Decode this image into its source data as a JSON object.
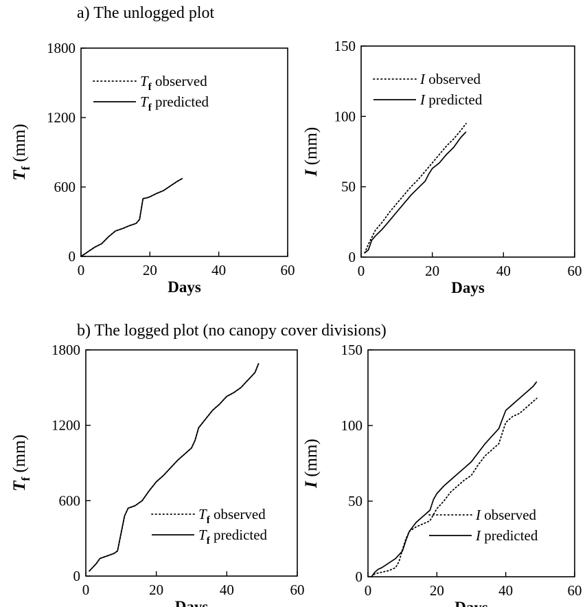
{
  "sections": {
    "a_title": "a) The unlogged plot",
    "b_title": "b) The logged plot (no canopy cover divisions)"
  },
  "chart_data": [
    {
      "id": "a-left",
      "type": "line",
      "xlabel": "Days",
      "ylabel_main": "T",
      "ylabel_sub": "f",
      "ylabel_unit": " (mm)",
      "xlim": [
        0,
        60
      ],
      "ylim": [
        0,
        1800
      ],
      "xticks": [
        0,
        20,
        40,
        60
      ],
      "yticks": [
        0,
        600,
        1200,
        1800
      ],
      "grid": false,
      "legend_position": "top-left",
      "series": [
        {
          "name_main": "T",
          "name_sub": "f",
          "name_rest": " observed",
          "style": "dotted",
          "x": [
            0,
            2,
            4,
            6,
            8,
            10,
            12,
            14,
            16,
            17,
            18,
            19,
            20,
            22,
            24,
            26,
            28,
            29.5
          ],
          "y": [
            0,
            40,
            80,
            110,
            170,
            220,
            240,
            265,
            285,
            320,
            500,
            505,
            515,
            545,
            570,
            610,
            650,
            675
          ]
        },
        {
          "name_main": "T",
          "name_sub": "f",
          "name_rest": " predicted",
          "style": "solid",
          "x": [
            0,
            2,
            4,
            6,
            8,
            10,
            12,
            14,
            16,
            17,
            18,
            19,
            20,
            22,
            24,
            26,
            28,
            29.5
          ],
          "y": [
            0,
            40,
            80,
            110,
            170,
            220,
            240,
            265,
            285,
            320,
            500,
            505,
            515,
            545,
            570,
            610,
            650,
            675
          ]
        }
      ]
    },
    {
      "id": "a-right",
      "type": "line",
      "xlabel": "Days",
      "ylabel_main": "I",
      "ylabel_sub": "",
      "ylabel_unit": " (mm)",
      "xlim": [
        0,
        60
      ],
      "ylim": [
        0,
        150
      ],
      "xticks": [
        0,
        20,
        40,
        60
      ],
      "yticks": [
        0,
        50,
        100,
        150
      ],
      "grid": false,
      "legend_position": "top-left",
      "series": [
        {
          "name_main": "I",
          "name_sub": "",
          "name_rest": " observed",
          "style": "dotted",
          "x": [
            1,
            2,
            4,
            6,
            8,
            10,
            12,
            14,
            16,
            18,
            20,
            22,
            24,
            26,
            28,
            29.5
          ],
          "y": [
            3,
            9,
            19,
            25,
            32,
            38,
            44,
            50,
            55,
            61,
            67,
            73,
            79,
            84,
            90,
            95
          ]
        },
        {
          "name_main": "I",
          "name_sub": "",
          "name_rest": " predicted",
          "style": "solid",
          "x": [
            1,
            2,
            3,
            4,
            6,
            8,
            10,
            12,
            14,
            16,
            18,
            19,
            20,
            22,
            24,
            26,
            28,
            29.5
          ],
          "y": [
            3,
            5,
            12,
            15,
            20,
            26,
            32,
            38,
            44,
            49,
            54,
            59,
            63,
            67,
            73,
            78,
            85,
            89
          ]
        }
      ]
    },
    {
      "id": "b-left",
      "type": "line",
      "xlabel": "Days",
      "ylabel_main": "T",
      "ylabel_sub": "f",
      "ylabel_unit": " (mm)",
      "xlim": [
        0,
        60
      ],
      "ylim": [
        0,
        1800
      ],
      "xticks": [
        0,
        20,
        40,
        60
      ],
      "yticks": [
        0,
        600,
        1200,
        1800
      ],
      "grid": false,
      "legend_position": "bottom-right",
      "series": [
        {
          "name_main": "T",
          "name_sub": "f",
          "name_rest": " observed",
          "style": "dotted",
          "x": [
            1,
            2,
            3,
            4,
            6,
            8,
            9,
            10,
            11,
            12,
            14,
            16,
            18,
            20,
            22,
            24,
            26,
            28,
            30,
            31,
            32,
            34,
            36,
            38,
            40,
            42,
            44,
            46,
            48,
            49
          ],
          "y": [
            40,
            70,
            100,
            140,
            160,
            180,
            200,
            340,
            480,
            540,
            560,
            600,
            680,
            750,
            800,
            860,
            920,
            970,
            1020,
            1080,
            1180,
            1250,
            1320,
            1370,
            1430,
            1460,
            1500,
            1560,
            1620,
            1690
          ]
        },
        {
          "name_main": "T",
          "name_sub": "f",
          "name_rest": " predicted",
          "style": "solid",
          "x": [
            1,
            2,
            3,
            4,
            6,
            8,
            9,
            10,
            11,
            12,
            14,
            16,
            18,
            20,
            22,
            24,
            26,
            28,
            30,
            31,
            32,
            34,
            36,
            38,
            40,
            42,
            44,
            46,
            48,
            49
          ],
          "y": [
            40,
            70,
            100,
            140,
            160,
            180,
            200,
            340,
            480,
            540,
            560,
            600,
            680,
            750,
            800,
            860,
            920,
            970,
            1020,
            1080,
            1180,
            1250,
            1320,
            1370,
            1430,
            1460,
            1500,
            1560,
            1620,
            1690
          ]
        }
      ]
    },
    {
      "id": "b-right",
      "type": "line",
      "xlabel": "Days",
      "ylabel_main": "I",
      "ylabel_sub": "",
      "ylabel_unit": " (mm)",
      "xlim": [
        0,
        60
      ],
      "ylim": [
        0,
        150
      ],
      "xticks": [
        0,
        20,
        40,
        60
      ],
      "yticks": [
        0,
        50,
        100,
        150
      ],
      "grid": false,
      "legend_position": "bottom-right",
      "series": [
        {
          "name_main": "I",
          "name_sub": "",
          "name_rest": " observed",
          "style": "dotted",
          "x": [
            1,
            2,
            4,
            6,
            8,
            9,
            10,
            11,
            12,
            14,
            16,
            18,
            20,
            22,
            24,
            26,
            28,
            30,
            32,
            34,
            36,
            38,
            39,
            40,
            42,
            44,
            46,
            48,
            49
          ],
          "y": [
            0,
            2,
            3,
            4,
            6,
            10,
            18,
            25,
            30,
            33,
            35,
            37,
            45,
            50,
            56,
            60,
            64,
            67,
            74,
            80,
            84,
            88,
            95,
            102,
            106,
            108,
            112,
            116,
            118
          ]
        },
        {
          "name_main": "I",
          "name_sub": "",
          "name_rest": " predicted",
          "style": "solid",
          "x": [
            1,
            2,
            3,
            4,
            6,
            8,
            10,
            11,
            12,
            14,
            16,
            18,
            19,
            20,
            22,
            24,
            26,
            28,
            30,
            32,
            34,
            36,
            38,
            39,
            40,
            42,
            44,
            46,
            48,
            49
          ],
          "y": [
            0,
            3,
            5,
            6,
            9,
            12,
            17,
            24,
            30,
            36,
            40,
            44,
            51,
            55,
            60,
            64,
            68,
            72,
            76,
            82,
            88,
            93,
            98,
            104,
            110,
            114,
            118,
            122,
            126,
            129
          ]
        }
      ]
    }
  ]
}
